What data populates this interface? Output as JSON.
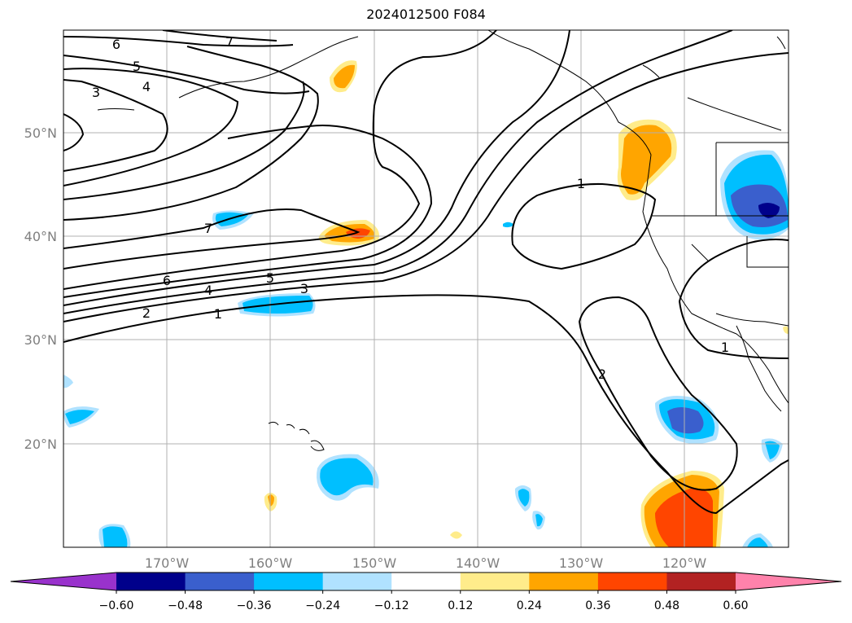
{
  "title": "2024012500 F084",
  "lat_labels": [
    "50°N",
    "40°N",
    "30°N",
    "20°N"
  ],
  "lon_labels": [
    "170°W",
    "160°W",
    "150°W",
    "140°W",
    "130°W",
    "120°W"
  ],
  "colorbar": {
    "ticks": [
      "−0.60",
      "−0.48",
      "−0.36",
      "−0.24",
      "−0.12",
      "0.12",
      "0.24",
      "0.36",
      "0.48",
      "0.60"
    ],
    "colors": [
      "#9932cc",
      "#00008b",
      "#3a5fcd",
      "#00bfff",
      "#b0e2ff",
      "#ffffff",
      "#ffec8b",
      "#ffa500",
      "#ff4500",
      "#b22222",
      "#ff82ab"
    ]
  },
  "contour_labels": [
    "7",
    "6",
    "5",
    "4",
    "3",
    "7",
    "6",
    "5",
    "4",
    "3",
    "2",
    "1",
    "1",
    "2",
    "1"
  ]
}
